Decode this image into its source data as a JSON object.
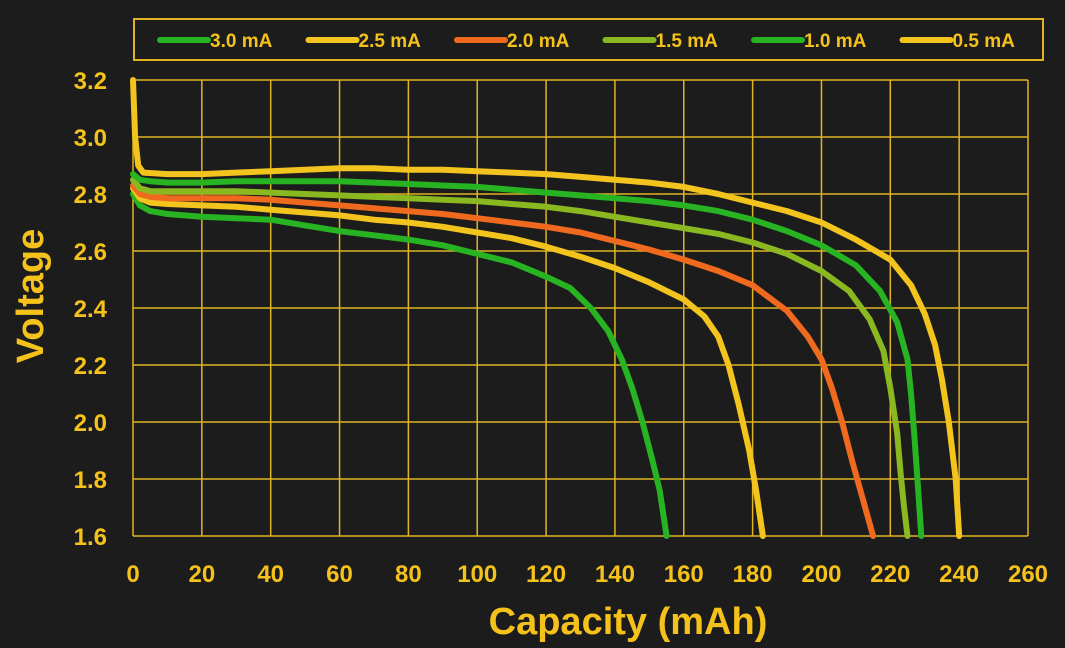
{
  "chart_data": {
    "type": "line",
    "xlabel": "Capacity (mAh)",
    "ylabel": "Voltage",
    "xlim": [
      0,
      260
    ],
    "ylim": [
      1.6,
      3.2
    ],
    "x_ticks": [
      0,
      20,
      40,
      60,
      80,
      100,
      120,
      140,
      160,
      180,
      200,
      220,
      240,
      260
    ],
    "x_tick_labels": [
      "0",
      "20",
      "40",
      "60",
      "80",
      "100",
      "120",
      "140",
      "160",
      "180",
      "200",
      "220",
      "240",
      "260"
    ],
    "y_ticks": [
      1.6,
      1.8,
      2.0,
      2.2,
      2.4,
      2.6,
      2.8,
      3.0,
      3.2
    ],
    "y_tick_labels": [
      "1.6",
      "1.8",
      "2.0",
      "2.2",
      "2.4",
      "2.6",
      "2.8",
      "3.0",
      "3.2"
    ],
    "grid": true,
    "legend_position": "top",
    "colors": {
      "background": "#1c1c1c",
      "text": "#f5c21b",
      "grid": "#e0b422"
    },
    "series": [
      {
        "name": "3.0 mA",
        "color": "#27b322",
        "points": [
          [
            0,
            2.8
          ],
          [
            2,
            2.76
          ],
          [
            5,
            2.74
          ],
          [
            10,
            2.73
          ],
          [
            20,
            2.72
          ],
          [
            30,
            2.715
          ],
          [
            40,
            2.71
          ],
          [
            50,
            2.69
          ],
          [
            60,
            2.67
          ],
          [
            70,
            2.655
          ],
          [
            80,
            2.64
          ],
          [
            90,
            2.62
          ],
          [
            100,
            2.59
          ],
          [
            110,
            2.56
          ],
          [
            120,
            2.51
          ],
          [
            127,
            2.47
          ],
          [
            133,
            2.4
          ],
          [
            138,
            2.32
          ],
          [
            142,
            2.22
          ],
          [
            145,
            2.12
          ],
          [
            148,
            2.0
          ],
          [
            151,
            1.86
          ],
          [
            153,
            1.76
          ],
          [
            155,
            1.6
          ]
        ]
      },
      {
        "name": "2.5 mA",
        "color": "#f2c41d",
        "points": [
          [
            0,
            2.82
          ],
          [
            2,
            2.785
          ],
          [
            5,
            2.77
          ],
          [
            10,
            2.765
          ],
          [
            20,
            2.76
          ],
          [
            30,
            2.755
          ],
          [
            40,
            2.745
          ],
          [
            50,
            2.735
          ],
          [
            60,
            2.725
          ],
          [
            70,
            2.71
          ],
          [
            80,
            2.7
          ],
          [
            90,
            2.685
          ],
          [
            100,
            2.665
          ],
          [
            110,
            2.645
          ],
          [
            120,
            2.615
          ],
          [
            130,
            2.58
          ],
          [
            140,
            2.54
          ],
          [
            150,
            2.49
          ],
          [
            160,
            2.43
          ],
          [
            166,
            2.37
          ],
          [
            170,
            2.3
          ],
          [
            173,
            2.2
          ],
          [
            176,
            2.06
          ],
          [
            179,
            1.9
          ],
          [
            181,
            1.76
          ],
          [
            183,
            1.6
          ]
        ]
      },
      {
        "name": "2.0 mA",
        "color": "#ef6a1e",
        "points": [
          [
            0,
            2.83
          ],
          [
            2,
            2.8
          ],
          [
            5,
            2.79
          ],
          [
            10,
            2.785
          ],
          [
            20,
            2.785
          ],
          [
            30,
            2.785
          ],
          [
            40,
            2.78
          ],
          [
            50,
            2.77
          ],
          [
            60,
            2.76
          ],
          [
            70,
            2.75
          ],
          [
            80,
            2.74
          ],
          [
            90,
            2.73
          ],
          [
            100,
            2.715
          ],
          [
            110,
            2.7
          ],
          [
            120,
            2.685
          ],
          [
            130,
            2.665
          ],
          [
            140,
            2.635
          ],
          [
            150,
            2.605
          ],
          [
            160,
            2.57
          ],
          [
            170,
            2.53
          ],
          [
            180,
            2.48
          ],
          [
            190,
            2.39
          ],
          [
            196,
            2.3
          ],
          [
            200,
            2.22
          ],
          [
            203,
            2.12
          ],
          [
            206,
            2.0
          ],
          [
            209,
            1.86
          ],
          [
            212,
            1.73
          ],
          [
            215,
            1.6
          ]
        ]
      },
      {
        "name": "1.5 mA",
        "color": "#8ab820",
        "points": [
          [
            0,
            2.85
          ],
          [
            2,
            2.82
          ],
          [
            5,
            2.81
          ],
          [
            10,
            2.81
          ],
          [
            20,
            2.81
          ],
          [
            30,
            2.81
          ],
          [
            40,
            2.805
          ],
          [
            50,
            2.8
          ],
          [
            60,
            2.795
          ],
          [
            70,
            2.79
          ],
          [
            80,
            2.785
          ],
          [
            90,
            2.78
          ],
          [
            100,
            2.775
          ],
          [
            110,
            2.765
          ],
          [
            120,
            2.755
          ],
          [
            130,
            2.74
          ],
          [
            140,
            2.72
          ],
          [
            150,
            2.7
          ],
          [
            160,
            2.68
          ],
          [
            170,
            2.66
          ],
          [
            180,
            2.63
          ],
          [
            190,
            2.59
          ],
          [
            200,
            2.53
          ],
          [
            208,
            2.46
          ],
          [
            214,
            2.36
          ],
          [
            218,
            2.25
          ],
          [
            220,
            2.12
          ],
          [
            222,
            1.96
          ],
          [
            223,
            1.82
          ],
          [
            224,
            1.7
          ],
          [
            225,
            1.6
          ]
        ]
      },
      {
        "name": "1.0 mA",
        "color": "#27b322",
        "points": [
          [
            0,
            2.87
          ],
          [
            2,
            2.85
          ],
          [
            5,
            2.845
          ],
          [
            10,
            2.84
          ],
          [
            20,
            2.84
          ],
          [
            30,
            2.845
          ],
          [
            40,
            2.845
          ],
          [
            50,
            2.845
          ],
          [
            60,
            2.845
          ],
          [
            70,
            2.84
          ],
          [
            80,
            2.835
          ],
          [
            90,
            2.83
          ],
          [
            100,
            2.825
          ],
          [
            110,
            2.815
          ],
          [
            120,
            2.805
          ],
          [
            130,
            2.795
          ],
          [
            140,
            2.785
          ],
          [
            150,
            2.775
          ],
          [
            160,
            2.76
          ],
          [
            170,
            2.74
          ],
          [
            180,
            2.71
          ],
          [
            190,
            2.67
          ],
          [
            200,
            2.62
          ],
          [
            210,
            2.55
          ],
          [
            217,
            2.46
          ],
          [
            222,
            2.35
          ],
          [
            225,
            2.22
          ],
          [
            226,
            2.1
          ],
          [
            227,
            1.95
          ],
          [
            228,
            1.78
          ],
          [
            229,
            1.6
          ]
        ]
      },
      {
        "name": "0.5 mA",
        "color": "#f2c41d",
        "points": [
          [
            0,
            3.2
          ],
          [
            0.6,
            3.0
          ],
          [
            1.5,
            2.9
          ],
          [
            3,
            2.875
          ],
          [
            10,
            2.87
          ],
          [
            20,
            2.87
          ],
          [
            30,
            2.875
          ],
          [
            40,
            2.88
          ],
          [
            50,
            2.885
          ],
          [
            60,
            2.89
          ],
          [
            70,
            2.89
          ],
          [
            80,
            2.885
          ],
          [
            90,
            2.885
          ],
          [
            100,
            2.88
          ],
          [
            110,
            2.875
          ],
          [
            120,
            2.87
          ],
          [
            130,
            2.86
          ],
          [
            140,
            2.85
          ],
          [
            150,
            2.84
          ],
          [
            160,
            2.825
          ],
          [
            170,
            2.8
          ],
          [
            180,
            2.77
          ],
          [
            190,
            2.74
          ],
          [
            200,
            2.7
          ],
          [
            210,
            2.64
          ],
          [
            220,
            2.57
          ],
          [
            226,
            2.48
          ],
          [
            230,
            2.38
          ],
          [
            233,
            2.27
          ],
          [
            235,
            2.15
          ],
          [
            237,
            2.0
          ],
          [
            239,
            1.8
          ],
          [
            240,
            1.6
          ]
        ]
      }
    ]
  }
}
